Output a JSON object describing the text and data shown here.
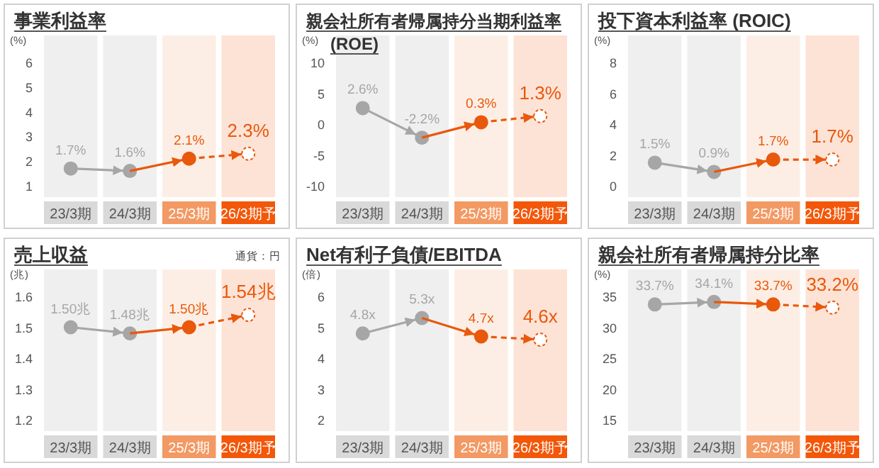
{
  "chart_data": [
    {
      "type": "line",
      "title": "事業利益率",
      "ylabel": "(%)",
      "categories": [
        "23/3期",
        "24/3期",
        "25/3期",
        "26/3期予"
      ],
      "ylim": [
        1,
        6
      ],
      "yticks": [
        1,
        2,
        3,
        4,
        5,
        6
      ],
      "bands": [
        {
          "axis": "x",
          "from": "25/3期",
          "to": "25/3期",
          "color": "#fdeee5"
        },
        {
          "axis": "x",
          "from": "26/3期予",
          "to": "26/3期予",
          "color": "#fde3d6"
        }
      ],
      "series": [
        {
          "color": "#a6a6a6",
          "values": [
            1.7,
            1.6,
            null,
            null
          ],
          "marker": "circle",
          "line_style": "solid",
          "value_labels": [
            "1.7%",
            "1.6%",
            null,
            null
          ]
        },
        {
          "color": "#e8590c",
          "values": [
            null,
            1.6,
            2.1,
            null
          ],
          "line_style": "solid"
        },
        {
          "color": "#e8590c",
          "values": [
            null,
            null,
            2.1,
            2.3
          ],
          "marker": "circle",
          "line_style": "dashed",
          "colors": [
            null,
            null,
            "#e8590c",
            "#ffffff"
          ],
          "value_labels": [
            null,
            null,
            "2.1%",
            "2.3%"
          ]
        }
      ]
    },
    {
      "type": "line",
      "title": "親会社所有者帰属持分当期利益率 (ROE)",
      "ylabel": "(%)",
      "categories": [
        "23/3期",
        "24/3期",
        "25/3期",
        "26/3期予"
      ],
      "ylim": [
        -10,
        10
      ],
      "yticks": [
        -10,
        -5,
        0,
        5,
        10
      ],
      "bands": [
        {
          "axis": "x",
          "from": "25/3期",
          "to": "25/3期",
          "color": "#fdeee5"
        },
        {
          "axis": "x",
          "from": "26/3期予",
          "to": "26/3期予",
          "color": "#fde3d6"
        }
      ],
      "series": [
        {
          "color": "#a6a6a6",
          "values": [
            2.6,
            -2.2,
            null,
            null
          ],
          "marker": "circle",
          "line_style": "solid",
          "value_labels": [
            "2.6%",
            "-2.2%",
            null,
            null
          ]
        },
        {
          "color": "#e8590c",
          "values": [
            null,
            -2.2,
            0.3,
            null
          ],
          "line_style": "solid"
        },
        {
          "color": "#e8590c",
          "values": [
            null,
            null,
            0.3,
            1.3
          ],
          "marker": "circle",
          "line_style": "dashed",
          "colors": [
            null,
            null,
            "#e8590c",
            "#ffffff"
          ],
          "value_labels": [
            null,
            null,
            "0.3%",
            "1.3%"
          ]
        }
      ]
    },
    {
      "type": "line",
      "title": "投下資本利益率 (ROIC)",
      "ylabel": "(%)",
      "categories": [
        "23/3期",
        "24/3期",
        "25/3期",
        "26/3期予"
      ],
      "ylim": [
        0,
        8
      ],
      "yticks": [
        0,
        2,
        4,
        6,
        8
      ],
      "bands": [
        {
          "axis": "x",
          "from": "25/3期",
          "to": "25/3期",
          "color": "#fdeee5"
        },
        {
          "axis": "x",
          "from": "26/3期予",
          "to": "26/3期予",
          "color": "#fde3d6"
        }
      ],
      "series": [
        {
          "color": "#a6a6a6",
          "values": [
            1.5,
            0.9,
            null,
            null
          ],
          "marker": "circle",
          "line_style": "solid",
          "value_labels": [
            "1.5%",
            "0.9%",
            null,
            null
          ]
        },
        {
          "color": "#e8590c",
          "values": [
            null,
            0.9,
            1.7,
            null
          ],
          "line_style": "solid"
        },
        {
          "color": "#e8590c",
          "values": [
            null,
            null,
            1.7,
            1.7
          ],
          "marker": "circle",
          "line_style": "dashed",
          "colors": [
            null,
            null,
            "#e8590c",
            "#ffffff"
          ],
          "value_labels": [
            null,
            null,
            "1.7%",
            "1.7%"
          ]
        }
      ]
    },
    {
      "type": "line",
      "title": "売上収益",
      "ylabel": "(兆)",
      "annotations": [
        "通貨：円"
      ],
      "categories": [
        "23/3期",
        "24/3期",
        "25/3期",
        "26/3期予"
      ],
      "ylim": [
        1.2,
        1.6
      ],
      "yticks": [
        1.2,
        1.3,
        1.4,
        1.5,
        1.6
      ],
      "bands": [
        {
          "axis": "x",
          "from": "25/3期",
          "to": "25/3期",
          "color": "#fdeee5"
        },
        {
          "axis": "x",
          "from": "26/3期予",
          "to": "26/3期予",
          "color": "#fde3d6"
        }
      ],
      "series": [
        {
          "color": "#a6a6a6",
          "values": [
            1.5,
            1.48,
            null,
            null
          ],
          "marker": "circle",
          "line_style": "solid",
          "value_labels": [
            "1.50兆",
            "1.48兆",
            null,
            null
          ]
        },
        {
          "color": "#e8590c",
          "values": [
            null,
            1.48,
            1.5,
            null
          ],
          "line_style": "solid"
        },
        {
          "color": "#e8590c",
          "values": [
            null,
            null,
            1.5,
            1.54
          ],
          "marker": "circle",
          "line_style": "dashed",
          "colors": [
            null,
            null,
            "#e8590c",
            "#ffffff"
          ],
          "value_labels": [
            null,
            null,
            "1.50兆",
            "1.54兆"
          ]
        }
      ]
    },
    {
      "type": "line",
      "title": "Net有利子負債/EBITDA",
      "ylabel": "(倍)",
      "categories": [
        "23/3期",
        "24/3期",
        "25/3期",
        "26/3期予"
      ],
      "ylim": [
        2,
        6
      ],
      "yticks": [
        2,
        3,
        4,
        5,
        6
      ],
      "bands": [
        {
          "axis": "x",
          "from": "25/3期",
          "to": "25/3期",
          "color": "#fdeee5"
        },
        {
          "axis": "x",
          "from": "26/3期予",
          "to": "26/3期予",
          "color": "#fde3d6"
        }
      ],
      "series": [
        {
          "color": "#a6a6a6",
          "values": [
            4.8,
            5.3,
            null,
            null
          ],
          "marker": "circle",
          "line_style": "solid",
          "value_labels": [
            "4.8x",
            "5.3x",
            null,
            null
          ]
        },
        {
          "color": "#e8590c",
          "values": [
            null,
            5.3,
            4.7,
            null
          ],
          "line_style": "solid"
        },
        {
          "color": "#e8590c",
          "values": [
            null,
            null,
            4.7,
            4.6
          ],
          "marker": "circle",
          "line_style": "dashed",
          "colors": [
            null,
            null,
            "#e8590c",
            "#ffffff"
          ],
          "value_labels": [
            null,
            null,
            "4.7x",
            "4.6x"
          ]
        }
      ]
    },
    {
      "type": "line",
      "title": "親会社所有者帰属持分比率",
      "ylabel": "(%)",
      "categories": [
        "23/3期",
        "24/3期",
        "25/3期",
        "26/3期予"
      ],
      "ylim": [
        15,
        35
      ],
      "yticks": [
        15,
        20,
        25,
        30,
        35
      ],
      "bands": [
        {
          "axis": "x",
          "from": "25/3期",
          "to": "25/3期",
          "color": "#fdeee5"
        },
        {
          "axis": "x",
          "from": "26/3期予",
          "to": "26/3期予",
          "color": "#fde3d6"
        }
      ],
      "series": [
        {
          "color": "#a6a6a6",
          "values": [
            33.7,
            34.1,
            null,
            null
          ],
          "marker": "circle",
          "line_style": "solid",
          "value_labels": [
            "33.7%",
            "34.1%",
            null,
            null
          ]
        },
        {
          "color": "#e8590c",
          "values": [
            null,
            34.1,
            33.7,
            null
          ],
          "line_style": "solid"
        },
        {
          "color": "#e8590c",
          "values": [
            null,
            null,
            33.7,
            33.2
          ],
          "marker": "circle",
          "line_style": "dashed",
          "colors": [
            null,
            null,
            "#e8590c",
            "#ffffff"
          ],
          "value_labels": [
            null,
            null,
            "33.7%",
            "33.2%"
          ]
        }
      ]
    }
  ]
}
